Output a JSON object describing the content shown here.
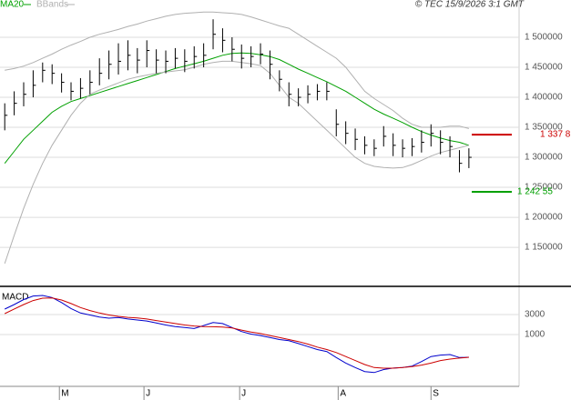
{
  "chart_data": [
    {
      "type": "ohlc",
      "legend": [
        "MA20",
        "BBands"
      ],
      "copyright": "© TEC 15/9/2026 3:1 GMT",
      "categories": [
        null,
        null,
        null,
        null,
        null,
        null,
        null,
        null,
        null,
        null,
        null,
        null,
        null,
        null,
        null,
        null,
        null,
        null,
        null,
        null,
        null,
        null,
        null,
        null,
        null,
        null,
        null,
        null,
        null,
        null,
        null,
        null,
        null,
        null,
        null,
        null,
        null,
        null,
        null,
        null,
        null,
        null,
        null,
        null,
        null,
        null,
        null,
        null,
        null,
        null
      ],
      "xlim": [
        -0.5,
        54.3
      ],
      "ylim": [
        1088000,
        1547000
      ],
      "yticks": [
        {
          "value": 1150000,
          "label": "1 150000"
        },
        {
          "value": 1200000,
          "label": "1 200000"
        },
        {
          "value": 1250000,
          "label": "1 250000"
        },
        {
          "value": 1300000,
          "label": "1 300000"
        },
        {
          "value": 1350000,
          "label": "1 350000"
        },
        {
          "value": 1400000,
          "label": "1 400000"
        },
        {
          "value": 1450000,
          "label": "1 450000"
        },
        {
          "value": 1500000,
          "label": "1 500000"
        }
      ],
      "grid": true,
      "bar_color": "#000000",
      "high": [
        1390000,
        1410000,
        1425000,
        1445000,
        1458000,
        1455000,
        1440000,
        1425000,
        1432000,
        1445000,
        1465000,
        1478000,
        1490000,
        1495000,
        1482000,
        1495000,
        1480000,
        1478000,
        1482000,
        1480000,
        1485000,
        1490000,
        1530000,
        1515000,
        1500000,
        1488000,
        1485000,
        1490000,
        1478000,
        1445000,
        1425000,
        1415000,
        1420000,
        1422000,
        1425000,
        1380000,
        1360000,
        1348000,
        1335000,
        1330000,
        1352000,
        1340000,
        1330000,
        1332000,
        1345000,
        1355000,
        1345000,
        1335000,
        1312000,
        1315000
      ],
      "low": [
        1345000,
        1370000,
        1385000,
        1400000,
        1425000,
        1422000,
        1408000,
        1395000,
        1398000,
        1405000,
        1420000,
        1430000,
        1438000,
        1445000,
        1440000,
        1450000,
        1440000,
        1440000,
        1448000,
        1442000,
        1448000,
        1450000,
        1480000,
        1475000,
        1460000,
        1448000,
        1450000,
        1455000,
        1430000,
        1410000,
        1385000,
        1385000,
        1390000,
        1395000,
        1395000,
        1335000,
        1322000,
        1312000,
        1305000,
        1302000,
        1318000,
        1302000,
        1300000,
        1302000,
        1308000,
        1318000,
        1305000,
        1300000,
        1275000,
        1282000
      ],
      "close": [
        1370000,
        1390000,
        1405000,
        1420000,
        1445000,
        1440000,
        1425000,
        1410000,
        1415000,
        1425000,
        1440000,
        1455000,
        1460000,
        1470000,
        1462000,
        1478000,
        1462000,
        1460000,
        1465000,
        1460000,
        1468000,
        1470000,
        1505000,
        1495000,
        1480000,
        1465000,
        1468000,
        1472000,
        1455000,
        1430000,
        1405000,
        1400000,
        1405000,
        1410000,
        1410000,
        1355000,
        1340000,
        1330000,
        1320000,
        1315000,
        1335000,
        1320000,
        1315000,
        1318000,
        1325000,
        1340000,
        1325000,
        1318000,
        1290000,
        1300000
      ],
      "series": [
        {
          "name": "MA20",
          "color": "#00a000",
          "values": [
            1290000,
            1310000,
            1330000,
            1345000,
            1360000,
            1375000,
            1385000,
            1393000,
            1398000,
            1403000,
            1408000,
            1413000,
            1418000,
            1423000,
            1428000,
            1433000,
            1438000,
            1443000,
            1448000,
            1452000,
            1456000,
            1460000,
            1465000,
            1470000,
            1473000,
            1474000,
            1473000,
            1471000,
            1468000,
            1463000,
            1455000,
            1447000,
            1440000,
            1433000,
            1426000,
            1418000,
            1410000,
            1400000,
            1390000,
            1380000,
            1372000,
            1365000,
            1358000,
            1350000,
            1343000,
            1337000,
            1332000,
            1328000,
            1325000,
            1320000
          ]
        },
        {
          "name": "BBands",
          "color": "#b0b0b0",
          "values": [
            1445000,
            1448000,
            1452000,
            1458000,
            1465000,
            1472000,
            1480000,
            1487000,
            1493000,
            1500000,
            1505000,
            1509000,
            1513000,
            1518000,
            1522000,
            1527000,
            1531000,
            1535000,
            1538000,
            1540000,
            1541000,
            1542000,
            1542000,
            1541000,
            1540000,
            1538000,
            1534000,
            1529000,
            1524000,
            1519000,
            1515000,
            1505000,
            1495000,
            1485000,
            1475000,
            1465000,
            1450000,
            1430000,
            1410000,
            1398000,
            1388000,
            1378000,
            1365000,
            1355000,
            1350000,
            1350000,
            1350000,
            1352000,
            1352000,
            1348000
          ],
          "lower_values": [
            1123000,
            1170000,
            1215000,
            1255000,
            1290000,
            1320000,
            1345000,
            1370000,
            1390000,
            1405000,
            1412000,
            1418000,
            1424000,
            1430000,
            1434000,
            1437000,
            1440000,
            1442000,
            1444000,
            1446000,
            1450000,
            1455000,
            1458000,
            1460000,
            1460000,
            1458000,
            1456000,
            1453000,
            1440000,
            1420000,
            1400000,
            1390000,
            1375000,
            1360000,
            1345000,
            1330000,
            1315000,
            1300000,
            1290000,
            1285000,
            1283000,
            1282000,
            1283000,
            1288000,
            1295000,
            1302000,
            1308000,
            1312000,
            1316000,
            1320000
          ]
        }
      ],
      "levels": [
        {
          "value": 1337800,
          "label": "1 337 8",
          "color": "#cc0000"
        },
        {
          "value": 1242550,
          "label": "1 242 55",
          "color": "#00a000"
        }
      ]
    },
    {
      "type": "line",
      "title": "MACD",
      "ylim": [
        -3545,
        5636
      ],
      "yticks": [
        1000,
        3000
      ],
      "grid": true,
      "xticks": [
        {
          "value": 5.77,
          "label": "M"
        },
        {
          "value": 14.7,
          "label": "J"
        },
        {
          "value": 24.8,
          "label": "J"
        },
        {
          "value": 35.2,
          "label": "A"
        },
        {
          "value": 45.0,
          "label": "S"
        }
      ],
      "series": [
        {
          "name": null,
          "color": "#0000cc",
          "values": [
            3545,
            4000,
            4500,
            4850,
            4909,
            4700,
            4200,
            3600,
            3150,
            2950,
            2750,
            2640,
            2700,
            2550,
            2450,
            2350,
            2150,
            1950,
            1800,
            1700,
            1600,
            1900,
            2200,
            2100,
            1700,
            1300,
            1050,
            900,
            700,
            500,
            380,
            100,
            -200,
            -500,
            -700,
            -1300,
            -1850,
            -2300,
            -2700,
            -2800,
            -2500,
            -2350,
            -2300,
            -2150,
            -1700,
            -1200,
            -1050,
            -1000,
            -1300,
            -1270
          ]
        },
        {
          "name": null,
          "color": "#cc0000",
          "values": [
            3090,
            3550,
            4000,
            4400,
            4636,
            4650,
            4450,
            4100,
            3700,
            3400,
            3150,
            2950,
            2820,
            2720,
            2650,
            2550,
            2400,
            2250,
            2100,
            1950,
            1850,
            1800,
            1780,
            1750,
            1650,
            1450,
            1250,
            1100,
            900,
            700,
            500,
            300,
            50,
            -250,
            -500,
            -800,
            -1200,
            -1600,
            -2000,
            -2300,
            -2364,
            -2364,
            -2300,
            -2200,
            -2050,
            -1850,
            -1600,
            -1450,
            -1350,
            -1270
          ]
        }
      ]
    }
  ]
}
